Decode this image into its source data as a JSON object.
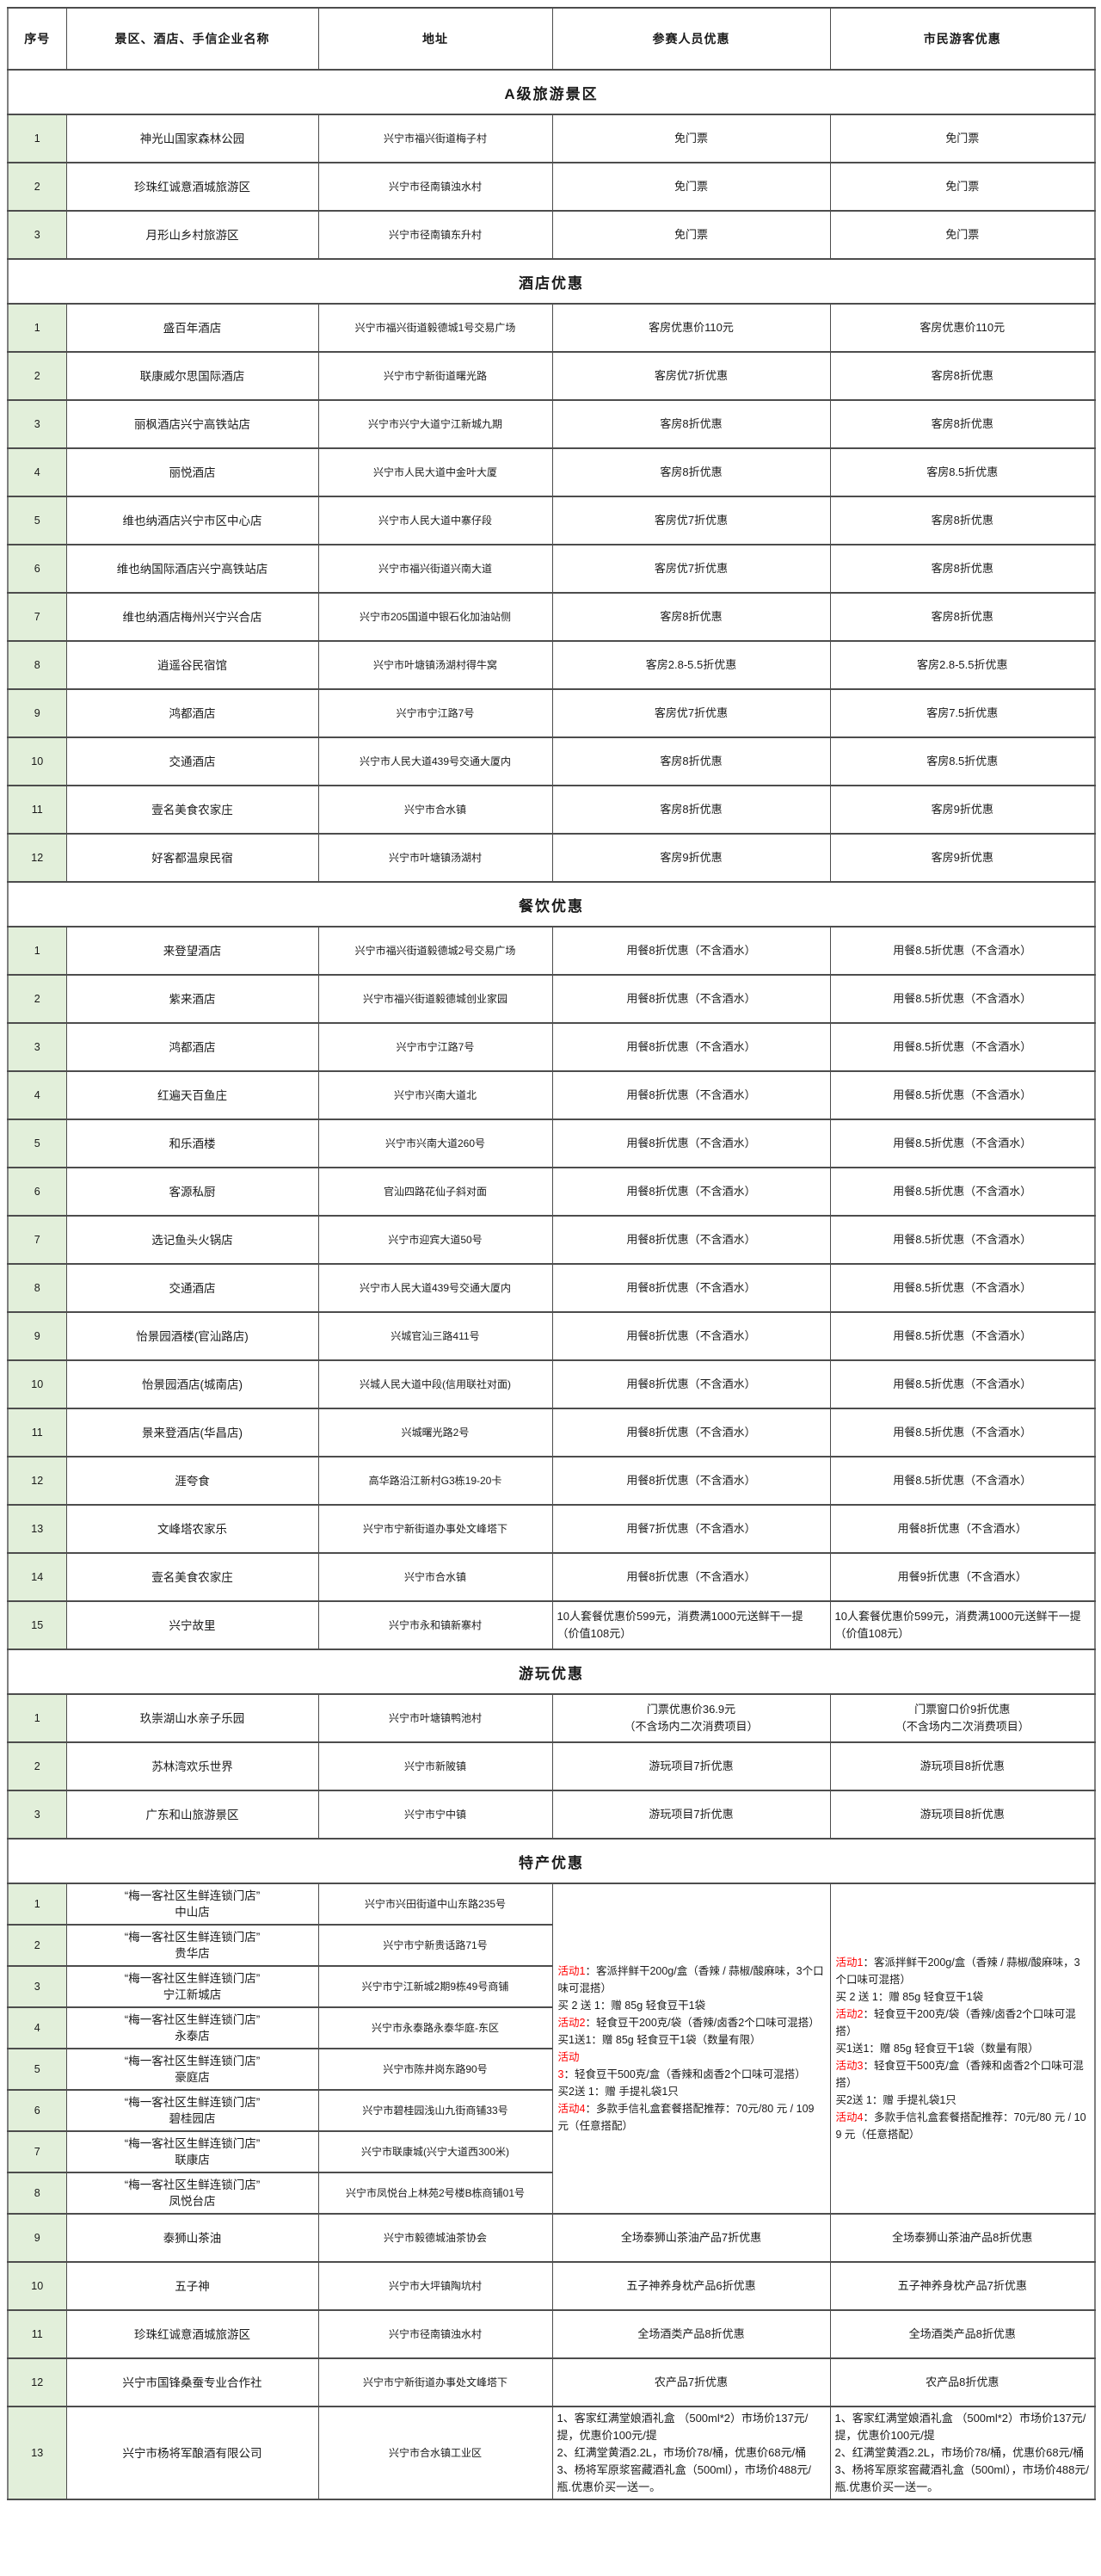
{
  "colors": {
    "serial_column_bg": "#e2efda",
    "activity_label_red": "#ff0000",
    "border_gray": "#4d4d4d",
    "text": "#1a1a1a",
    "page_bg": "#ffffff"
  },
  "table": {
    "columns": [
      "序号",
      "景区、酒店、手信企业名称",
      "地址",
      "参赛人员优惠",
      "市民游客优惠"
    ],
    "sections": [
      {
        "title": "A级旅游景区",
        "rows": [
          {
            "no": "1",
            "name": "神光山国家森林公园",
            "address": "兴宁市福兴街道梅子村",
            "participant": "免门票",
            "citizen": "免门票"
          },
          {
            "no": "2",
            "name": "珍珠红诚意酒城旅游区",
            "address": "兴宁市径南镇浊水村",
            "participant": "免门票",
            "citizen": "免门票"
          },
          {
            "no": "3",
            "name": "月形山乡村旅游区",
            "address": "兴宁市径南镇东升村",
            "participant": "免门票",
            "citizen": "免门票"
          }
        ]
      },
      {
        "title": "酒店优惠",
        "rows": [
          {
            "no": "1",
            "name": "盛百年酒店",
            "address": "兴宁市福兴街道毅德城1号交易广场",
            "participant": "客房优惠价110元",
            "citizen": "客房优惠价110元"
          },
          {
            "no": "2",
            "name": "联康威尔思国际酒店",
            "address": "兴宁市宁新街道曙光路",
            "participant": "客房优7折优惠",
            "citizen": "客房8折优惠"
          },
          {
            "no": "3",
            "name": "丽枫酒店兴宁高铁站店",
            "address": "兴宁市兴宁大道宁江新城九期",
            "participant": "客房8折优惠",
            "citizen": "客房8折优惠"
          },
          {
            "no": "4",
            "name": "丽悦酒店",
            "address": "兴宁市人民大道中金叶大厦",
            "participant": "客房8折优惠",
            "citizen": "客房8.5折优惠"
          },
          {
            "no": "5",
            "name": "维也纳酒店兴宁市区中心店",
            "address": "兴宁市人民大道中寨仔段",
            "participant": "客房优7折优惠",
            "citizen": "客房8折优惠"
          },
          {
            "no": "6",
            "name": "维也纳国际酒店兴宁高铁站店",
            "address": "兴宁市福兴街道兴南大道",
            "participant": "客房优7折优惠",
            "citizen": "客房8折优惠"
          },
          {
            "no": "7",
            "name": "维也纳酒店梅州兴宁兴合店",
            "address": "兴宁市205国道中银石化加油站侧",
            "participant": "客房8折优惠",
            "citizen": "客房8折优惠"
          },
          {
            "no": "8",
            "name": "逍遥谷民宿馆",
            "address": "兴宁市叶塘镇汤湖村得牛窝",
            "participant": "客房2.8-5.5折优惠",
            "citizen": "客房2.8-5.5折优惠"
          },
          {
            "no": "9",
            "name": "鸿都酒店",
            "address": "兴宁市宁江路7号",
            "participant": "客房优7折优惠",
            "citizen": "客房7.5折优惠"
          },
          {
            "no": "10",
            "name": "交通酒店",
            "address": "兴宁市人民大道439号交通大厦内",
            "participant": "客房8折优惠",
            "citizen": "客房8.5折优惠"
          },
          {
            "no": "11",
            "name": "壹名美食农家庄",
            "address": "兴宁市合水镇",
            "participant": "客房8折优惠",
            "citizen": "客房9折优惠"
          },
          {
            "no": "12",
            "name": "好客都温泉民宿",
            "address": "兴宁市叶塘镇汤湖村",
            "participant": "客房9折优惠",
            "citizen": "客房9折优惠"
          }
        ]
      },
      {
        "title": "餐饮优惠",
        "rows": [
          {
            "no": "1",
            "name": "来登望酒店",
            "address": "兴宁市福兴街道毅德城2号交易广场",
            "participant": "用餐8折优惠（不含酒水）",
            "citizen": "用餐8.5折优惠（不含酒水）"
          },
          {
            "no": "2",
            "name": "紫来酒店",
            "address": "兴宁市福兴街道毅德城创业家园",
            "participant": "用餐8折优惠（不含酒水）",
            "citizen": "用餐8.5折优惠（不含酒水）"
          },
          {
            "no": "3",
            "name": "鸿都酒店",
            "address": "兴宁市宁江路7号",
            "participant": "用餐8折优惠（不含酒水）",
            "citizen": "用餐8.5折优惠（不含酒水）"
          },
          {
            "no": "4",
            "name": "红遍天百鱼庄",
            "address": "兴宁市兴南大道北",
            "participant": "用餐8折优惠（不含酒水）",
            "citizen": "用餐8.5折优惠（不含酒水）"
          },
          {
            "no": "5",
            "name": "和乐酒楼",
            "address": "兴宁市兴南大道260号",
            "participant": "用餐8折优惠（不含酒水）",
            "citizen": "用餐8.5折优惠（不含酒水）"
          },
          {
            "no": "6",
            "name": "客源私厨",
            "address": "官汕四路花仙子斜对面",
            "participant": "用餐8折优惠（不含酒水）",
            "citizen": "用餐8.5折优惠（不含酒水）"
          },
          {
            "no": "7",
            "name": "选记鱼头火锅店",
            "address": "兴宁市迎宾大道50号",
            "participant": "用餐8折优惠（不含酒水）",
            "citizen": "用餐8.5折优惠（不含酒水）"
          },
          {
            "no": "8",
            "name": "交通酒店",
            "address": "兴宁市人民大道439号交通大厦内",
            "participant": "用餐8折优惠（不含酒水）",
            "citizen": "用餐8.5折优惠（不含酒水）"
          },
          {
            "no": "9",
            "name": "怡景园酒楼(官汕路店)",
            "address": "兴城官汕三路411号",
            "participant": "用餐8折优惠（不含酒水）",
            "citizen": "用餐8.5折优惠（不含酒水）"
          },
          {
            "no": "10",
            "name": "怡景园酒店(城南店)",
            "address": "兴城人民大道中段(信用联社对面)",
            "participant": "用餐8折优惠（不含酒水）",
            "citizen": "用餐8.5折优惠（不含酒水）"
          },
          {
            "no": "11",
            "name": "景来登酒店(华昌店)",
            "address": "兴城曙光路2号",
            "participant": "用餐8折优惠（不含酒水）",
            "citizen": "用餐8.5折优惠（不含酒水）"
          },
          {
            "no": "12",
            "name": "涯夸食",
            "address": "高华路沿江新村G3栋19-20卡",
            "participant": "用餐8折优惠（不含酒水）",
            "citizen": "用餐8.5折优惠（不含酒水）"
          },
          {
            "no": "13",
            "name": "文峰塔农家乐",
            "address": "兴宁市宁新街道办事处文峰塔下",
            "participant": "用餐7折优惠（不含酒水）",
            "citizen": "用餐8折优惠（不含酒水）"
          },
          {
            "no": "14",
            "name": "壹名美食农家庄",
            "address": "兴宁市合水镇",
            "participant": "用餐8折优惠（不含酒水）",
            "citizen": "用餐9折优惠（不含酒水）"
          },
          {
            "no": "15",
            "name": "兴宁故里",
            "address": "兴宁市永和镇新寨村",
            "participant": "10人套餐优惠价599元，消费满1000元送鲜干一提（价值108元）",
            "citizen": "10人套餐优惠价599元，消费满1000元送鲜干一提（价值108元）",
            "offer_align": "left"
          }
        ]
      },
      {
        "title": "游玩优惠",
        "rows": [
          {
            "no": "1",
            "name": "玖崇湖山水亲子乐园",
            "address": "兴宁市叶塘镇鸭池村",
            "participant": "门票优惠价36.9元\n（不含场内二次消费项目）",
            "citizen": "门票窗口价9折优惠\n（不含场内二次消费项目）"
          },
          {
            "no": "2",
            "name": "苏林湾欢乐世界",
            "address": "兴宁市新陂镇",
            "participant": "游玩项目7折优惠",
            "citizen": "游玩项目8折优惠"
          },
          {
            "no": "3",
            "name": "广东和山旅游景区",
            "address": "兴宁市宁中镇",
            "participant": "游玩项目7折优惠",
            "citizen": "游玩项目8折优惠"
          }
        ]
      },
      {
        "title": "特产优惠",
        "merged_offers": {
          "row_count": 8,
          "lines": [
            {
              "label": "活动1",
              "text": "：客派拌鲜干200g/盒（香辣 / 蒜椒/酸麻味，3个口味可混搭）"
            },
            {
              "label": null,
              "text": "买 2 送 1：赠 85g 轻食豆干1袋"
            },
            {
              "label": "活动2",
              "text": "：轻食豆干200克/袋（香辣/卤香2个口味可混搭）"
            },
            {
              "label": null,
              "text": "买1送1：赠 85g 轻食豆干1袋（数量有限）"
            },
            {
              "label": "活动3",
              "text": "：轻食豆干500克/盒（香辣和卤香2个口味可混搭）"
            },
            {
              "label": null,
              "text": "买2送 1：赠 手提礼袋1只"
            },
            {
              "label": "活动4",
              "text": "：多款手信礼盒套餐搭配推荐：70元/80 元 / 109 元（任意搭配）"
            }
          ]
        },
        "rows": [
          {
            "no": "1",
            "name": "“梅一客社区生鲜连锁门店”\n中山店",
            "address": "兴宁市兴田街道中山东路235号"
          },
          {
            "no": "2",
            "name": "“梅一客社区生鲜连锁门店”\n贵华店",
            "address": "兴宁市宁新贵话路71号"
          },
          {
            "no": "3",
            "name": "“梅一客社区生鲜连锁门店”\n宁江新城店",
            "address": "兴宁市宁江新城2期9栋49号商铺"
          },
          {
            "no": "4",
            "name": "“梅一客社区生鲜连锁门店”\n永泰店",
            "address": "兴宁市永泰路永泰华庭-东区"
          },
          {
            "no": "5",
            "name": "“梅一客社区生鲜连锁门店”\n豪庭店",
            "address": "兴宁市陈井岗东路90号"
          },
          {
            "no": "6",
            "name": "“梅一客社区生鲜连锁门店”\n碧桂园店",
            "address": "兴宁市碧桂园浅山九街商铺33号"
          },
          {
            "no": "7",
            "name": "“梅一客社区生鲜连锁门店”\n联康店",
            "address": "兴宁市联康城(兴宁大道西300米)"
          },
          {
            "no": "8",
            "name": "“梅一客社区生鲜连锁门店”\n凤悦台店",
            "address": "兴宁市凤悦台上林苑2号楼B栋商铺01号"
          },
          {
            "no": "9",
            "name": "泰狮山茶油",
            "address": "兴宁市毅德城油茶协会",
            "participant": "全场泰狮山茶油产品7折优惠",
            "citizen": "全场泰狮山茶油产品8折优惠"
          },
          {
            "no": "10",
            "name": "五子神",
            "address": "兴宁市大坪镇陶坑村",
            "participant": "五子神养身枕产品6折优惠",
            "citizen": "五子神养身枕产品7折优惠"
          },
          {
            "no": "11",
            "name": "珍珠红诚意酒城旅游区",
            "address": "兴宁市径南镇浊水村",
            "participant": "全场酒类产品8折优惠",
            "citizen": "全场酒类产品8折优惠"
          },
          {
            "no": "12",
            "name": "兴宁市国锋桑蚕专业合作社",
            "address": "兴宁市宁新街道办事处文峰塔下",
            "participant": "农产品7折优惠",
            "citizen": "农产品8折优惠"
          },
          {
            "no": "13",
            "name": "兴宁市杨将军酿酒有限公司",
            "address": "兴宁市合水镇工业区",
            "participant": "1、客家红满堂娘酒礼盒 （500ml*2）市场价137元/提，优惠价100元/提\n2、红满堂黄酒2.2L，市场价78/桶，优惠价68元/桶\n3、杨将军原浆窖藏酒礼盒（500ml），市场价488元/瓶.优惠价买一送一。",
            "citizen": "1、客家红满堂娘酒礼盒 （500ml*2）市场价137元/提，优惠价100元/提\n2、红满堂黄酒2.2L，市场价78/桶，优惠价68元/桶\n3、杨将军原浆窖藏酒礼盒（500ml），市场价488元/瓶.优惠价买一送一。",
            "offer_align": "left"
          }
        ]
      }
    ]
  }
}
